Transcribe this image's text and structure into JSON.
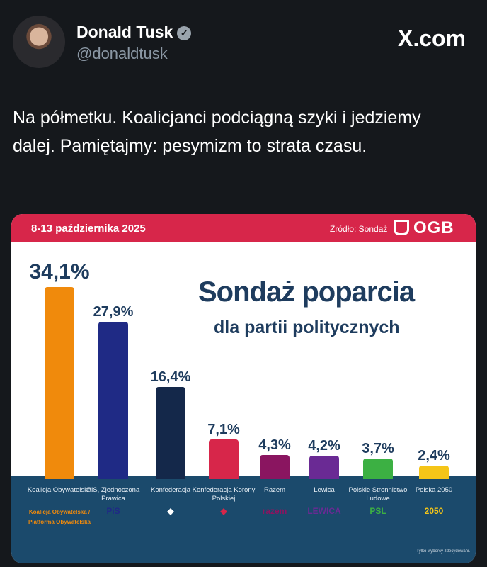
{
  "tweet": {
    "name": "Donald Tusk",
    "handle": "@donaldtusk",
    "site": "X.com",
    "text": "Na półmetku. Koalicjanci podciągną szyki i jedziemy dalej. Pamiętajmy: pesymizm to strata czasu."
  },
  "card": {
    "date": "8-13 października 2025",
    "source": "Źródło: Sondaż",
    "brand": "OGB",
    "title": "Sondaż poparcia",
    "subtitle": "dla partii politycznych",
    "note": "Tylko wyborcy zdecydowani."
  },
  "chart_data": {
    "type": "bar",
    "title": "Sondaż poparcia dla partii politycznych",
    "categories": [
      "Koalicja Obywatelska",
      "PiS, Zjednoczona Prawica",
      "Konfederacja",
      "Konfederacja Korony Polskiej",
      "Razem",
      "Lewica",
      "Polskie Stronnictwo Ludowe",
      "Polska 2050"
    ],
    "values": [
      34.1,
      27.9,
      16.4,
      7.1,
      4.3,
      4.2,
      3.7,
      2.4
    ],
    "value_labels": [
      "34,1%",
      "27,9%",
      "16,4%",
      "7,1%",
      "4,3%",
      "4,2%",
      "3,7%",
      "2,4%"
    ],
    "colors": [
      "#f08a0c",
      "#1f2a85",
      "#14284a",
      "#d7264a",
      "#8a1560",
      "#6a2a94",
      "#3cb043",
      "#f5c518"
    ],
    "logos": [
      "Koalicja Obywatelska / Platforma Obywatelska",
      "PiS",
      "",
      "",
      "razem",
      "LEWICA",
      "PSL",
      "2050"
    ],
    "ylim": [
      0,
      35
    ]
  }
}
